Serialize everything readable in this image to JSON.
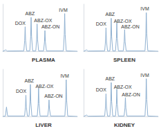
{
  "chart_data": [
    {
      "type": "line",
      "title": "PLASMA",
      "color": "#8fb0d0",
      "tick_labels": false,
      "grid": false,
      "xlim": [
        0,
        20
      ],
      "ylim": [
        0,
        100
      ],
      "x": [
        0,
        0.8,
        1.2,
        5.65,
        5.88,
        6.0,
        6.12,
        6.4,
        7.25,
        7.48,
        7.6,
        7.72,
        8.0,
        8.85,
        9.08,
        9.2,
        9.32,
        9.6,
        10.95,
        11.18,
        11.3,
        11.42,
        11.7,
        16.25,
        16.48,
        16.6,
        16.72,
        17.0,
        20
      ],
      "values": [
        0,
        3,
        0.5,
        1,
        23,
        52,
        23,
        1,
        1,
        32,
        72,
        32,
        1,
        1,
        26,
        58,
        26,
        1,
        1,
        20,
        44,
        20,
        1,
        1,
        36,
        80,
        36,
        1,
        0
      ],
      "annotations": [
        {
          "text": "DOX",
          "x": 4.7,
          "y": 60
        },
        {
          "text": "ABZ",
          "x": 7.3,
          "y": 80
        },
        {
          "text": "ABZ-OX",
          "x": 10.8,
          "y": 66
        },
        {
          "text": "ABZ-ON",
          "x": 12.8,
          "y": 52
        },
        {
          "text": "IVM",
          "x": 16.2,
          "y": 88
        }
      ]
    },
    {
      "type": "line",
      "title": "SPLEEN",
      "color": "#8fb0d0",
      "tick_labels": false,
      "grid": false,
      "xlim": [
        0,
        20
      ],
      "ylim": [
        0,
        100
      ],
      "x": [
        0,
        0.8,
        1.2,
        5.65,
        5.88,
        6.0,
        6.12,
        6.4,
        7.05,
        7.28,
        7.4,
        7.52,
        7.8,
        8.55,
        8.78,
        8.9,
        9.02,
        9.3,
        10.65,
        10.88,
        11.0,
        11.12,
        11.4,
        16.45,
        16.68,
        16.8,
        16.92,
        17.2,
        20
      ],
      "values": [
        0,
        3,
        0.5,
        1,
        22,
        50,
        22,
        1,
        1,
        31,
        70,
        31,
        1,
        1,
        27,
        60,
        27,
        1,
        1,
        21,
        46,
        21,
        1,
        1,
        37,
        82,
        37,
        1,
        0
      ],
      "annotations": [
        {
          "text": "DOX",
          "x": 4.7,
          "y": 58
        },
        {
          "text": "ABZ",
          "x": 7.1,
          "y": 78
        },
        {
          "text": "ABZ-OX",
          "x": 10.5,
          "y": 64
        },
        {
          "text": "ABZ-ON",
          "x": 12.5,
          "y": 52
        },
        {
          "text": "IVM",
          "x": 16.4,
          "y": 90
        }
      ]
    },
    {
      "type": "line",
      "title": "LIVER",
      "color": "#8fb0d0",
      "tick_labels": false,
      "grid": false,
      "xlim": [
        0,
        20
      ],
      "ylim": [
        0,
        100
      ],
      "x": [
        0,
        0.7,
        1.0,
        1.3,
        5.85,
        6.08,
        6.2,
        6.32,
        6.6,
        7.05,
        7.28,
        7.4,
        7.52,
        7.8,
        9.25,
        9.48,
        9.6,
        9.72,
        10.0,
        12.05,
        12.28,
        12.4,
        12.52,
        12.8,
        16.65,
        16.88,
        17.0,
        17.12,
        17.4,
        20
      ],
      "values": [
        0,
        1,
        20,
        1,
        1,
        20,
        45,
        20,
        1,
        1,
        31,
        68,
        31,
        1,
        1,
        27,
        60,
        27,
        1,
        1,
        16,
        35,
        16,
        1,
        1,
        35,
        78,
        35,
        1,
        0
      ],
      "annotations": [
        {
          "text": "DOX",
          "x": 4.9,
          "y": 53
        },
        {
          "text": "ABZ",
          "x": 7.1,
          "y": 76
        },
        {
          "text": "ABZ-OX",
          "x": 11.2,
          "y": 64
        },
        {
          "text": "ABZ-ON",
          "x": 13.6,
          "y": 44
        },
        {
          "text": "IVM",
          "x": 16.6,
          "y": 86
        }
      ]
    },
    {
      "type": "line",
      "title": "KIDNEY",
      "color": "#8fb0d0",
      "tick_labels": false,
      "grid": false,
      "xlim": [
        0,
        20
      ],
      "ylim": [
        0,
        100
      ],
      "x": [
        0,
        0.8,
        1.2,
        5.65,
        5.88,
        6.0,
        6.12,
        6.4,
        7.05,
        7.28,
        7.4,
        7.52,
        7.8,
        8.55,
        8.78,
        8.9,
        9.02,
        9.3,
        10.85,
        11.08,
        11.2,
        11.32,
        11.6,
        16.45,
        16.68,
        16.8,
        16.92,
        17.2,
        20
      ],
      "values": [
        0,
        3,
        0.5,
        1,
        22,
        48,
        22,
        1,
        1,
        32,
        72,
        32,
        1,
        1,
        26,
        58,
        26,
        1,
        1,
        18,
        40,
        18,
        1,
        1,
        36,
        80,
        36,
        1,
        0
      ],
      "annotations": [
        {
          "text": "DOX",
          "x": 4.7,
          "y": 56
        },
        {
          "text": "ABZ",
          "x": 7.1,
          "y": 80
        },
        {
          "text": "ABZ-OX",
          "x": 10.5,
          "y": 63
        },
        {
          "text": "ABZ-ON",
          "x": 12.7,
          "y": 47
        },
        {
          "text": "IVM",
          "x": 16.4,
          "y": 88
        }
      ]
    }
  ]
}
